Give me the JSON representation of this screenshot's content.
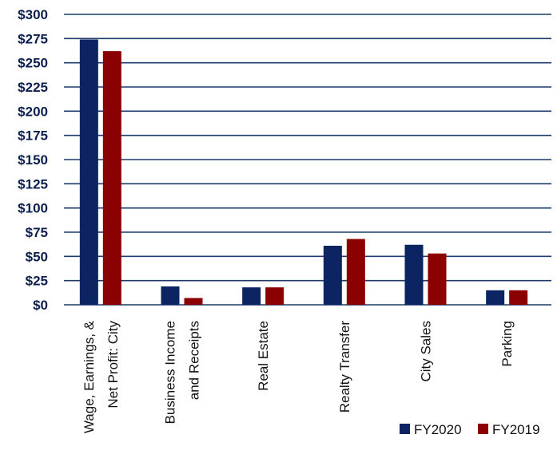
{
  "chart_data": {
    "type": "bar",
    "categories": [
      [
        "Wage, Earnings, &",
        "Net Profit: City"
      ],
      [
        "Business Income",
        "and Receipts"
      ],
      [
        "Real Estate"
      ],
      [
        "Realty Transfer"
      ],
      [
        "City Sales"
      ],
      [
        "Parking"
      ]
    ],
    "series": [
      {
        "name": "FY2020",
        "color": "#0c2461",
        "values": [
          274,
          19,
          18,
          61,
          62,
          15
        ]
      },
      {
        "name": "FY2019",
        "color": "#8b0000",
        "values": [
          262,
          7,
          18,
          68,
          53,
          15
        ]
      }
    ],
    "ylim": [
      0,
      300
    ],
    "yticks": [
      0,
      25,
      50,
      75,
      100,
      125,
      150,
      175,
      200,
      225,
      250,
      275,
      300
    ],
    "ytick_labels": [
      "$0",
      "$25",
      "$50",
      "$75",
      "$100",
      "$125",
      "$150",
      "$175",
      "$200",
      "$225",
      "$250",
      "$275",
      "$300"
    ],
    "grid": true,
    "grid_color": "#1f3a6b",
    "legend_position": "bottom-right",
    "title": "",
    "xlabel": "",
    "ylabel": ""
  }
}
